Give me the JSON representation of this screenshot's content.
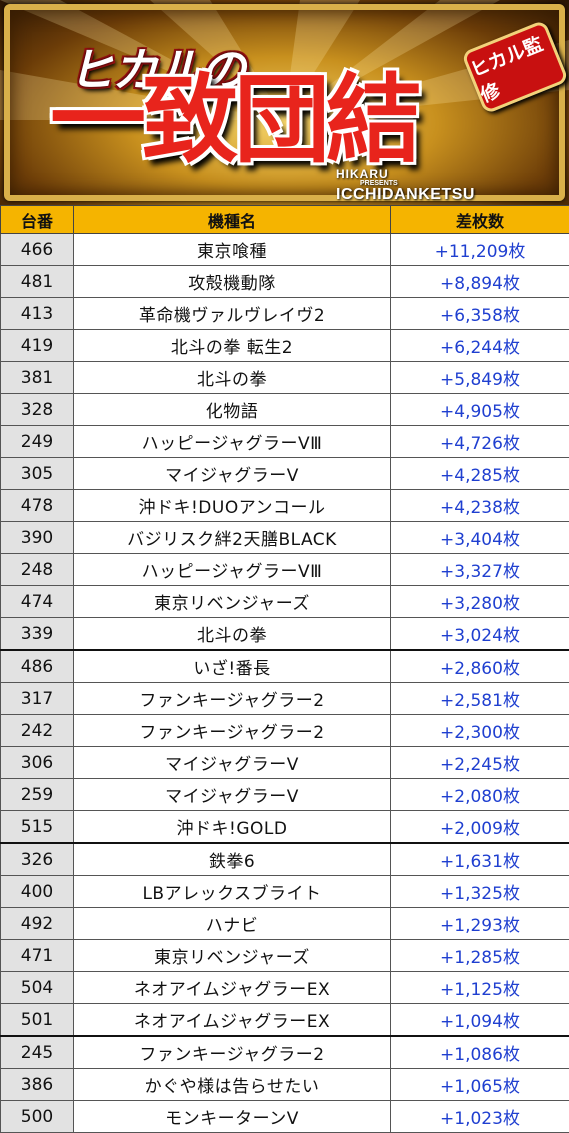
{
  "banner": {
    "logo_small": "ヒカルの",
    "logo_main": "一致団結",
    "badge": "ヒカル監修",
    "sub_line1": "HIKARU",
    "sub_line2": "PRESENTS",
    "sub_line3": "ICCHIDANKETSU"
  },
  "table": {
    "headers": {
      "number": "台番",
      "model": "機種名",
      "diff": "差枚数"
    },
    "rows": [
      {
        "number": "466",
        "model": "東京喰種",
        "diff": "+11,209枚"
      },
      {
        "number": "481",
        "model": "攻殻機動隊",
        "diff": "+8,894枚"
      },
      {
        "number": "413",
        "model": "革命機ヴァルヴレイヴ2",
        "diff": "+6,358枚"
      },
      {
        "number": "419",
        "model": "北斗の拳 転生2",
        "diff": "+6,244枚"
      },
      {
        "number": "381",
        "model": "北斗の拳",
        "diff": "+5,849枚"
      },
      {
        "number": "328",
        "model": "化物語",
        "diff": "+4,905枚"
      },
      {
        "number": "249",
        "model": "ハッピージャグラーVⅢ",
        "diff": "+4,726枚"
      },
      {
        "number": "305",
        "model": "マイジャグラーV",
        "diff": "+4,285枚"
      },
      {
        "number": "478",
        "model": "沖ドキ!DUOアンコール",
        "diff": "+4,238枚"
      },
      {
        "number": "390",
        "model": "バジリスク絆2天膳BLACK",
        "diff": "+3,404枚"
      },
      {
        "number": "248",
        "model": "ハッピージャグラーVⅢ",
        "diff": "+3,327枚"
      },
      {
        "number": "474",
        "model": "東京リベンジャーズ",
        "diff": "+3,280枚"
      },
      {
        "number": "339",
        "model": "北斗の拳",
        "diff": "+3,024枚"
      },
      {
        "number": "486",
        "model": "いざ!番長",
        "diff": "+2,860枚"
      },
      {
        "number": "317",
        "model": "ファンキージャグラー2",
        "diff": "+2,581枚"
      },
      {
        "number": "242",
        "model": "ファンキージャグラー2",
        "diff": "+2,300枚"
      },
      {
        "number": "306",
        "model": "マイジャグラーV",
        "diff": "+2,245枚"
      },
      {
        "number": "259",
        "model": "マイジャグラーV",
        "diff": "+2,080枚"
      },
      {
        "number": "515",
        "model": "沖ドキ!GOLD",
        "diff": "+2,009枚"
      },
      {
        "number": "326",
        "model": "鉄拳6",
        "diff": "+1,631枚"
      },
      {
        "number": "400",
        "model": "LBアレックスブライト",
        "diff": "+1,325枚"
      },
      {
        "number": "492",
        "model": "ハナビ",
        "diff": "+1,293枚"
      },
      {
        "number": "471",
        "model": "東京リベンジャーズ",
        "diff": "+1,285枚"
      },
      {
        "number": "504",
        "model": "ネオアイムジャグラーEX",
        "diff": "+1,125枚"
      },
      {
        "number": "501",
        "model": "ネオアイムジャグラーEX",
        "diff": "+1,094枚"
      },
      {
        "number": "245",
        "model": "ファンキージャグラー2",
        "diff": "+1,086枚"
      },
      {
        "number": "386",
        "model": "かぐや様は告らせたい",
        "diff": "+1,065枚"
      },
      {
        "number": "500",
        "model": "モンキーターンV",
        "diff": "+1,023枚"
      }
    ]
  },
  "colors": {
    "header_bg": "#f5b400",
    "diff_text": "#1f3fd0",
    "number_bg": "#e2e2e2",
    "logo_red": "#e8241c"
  }
}
